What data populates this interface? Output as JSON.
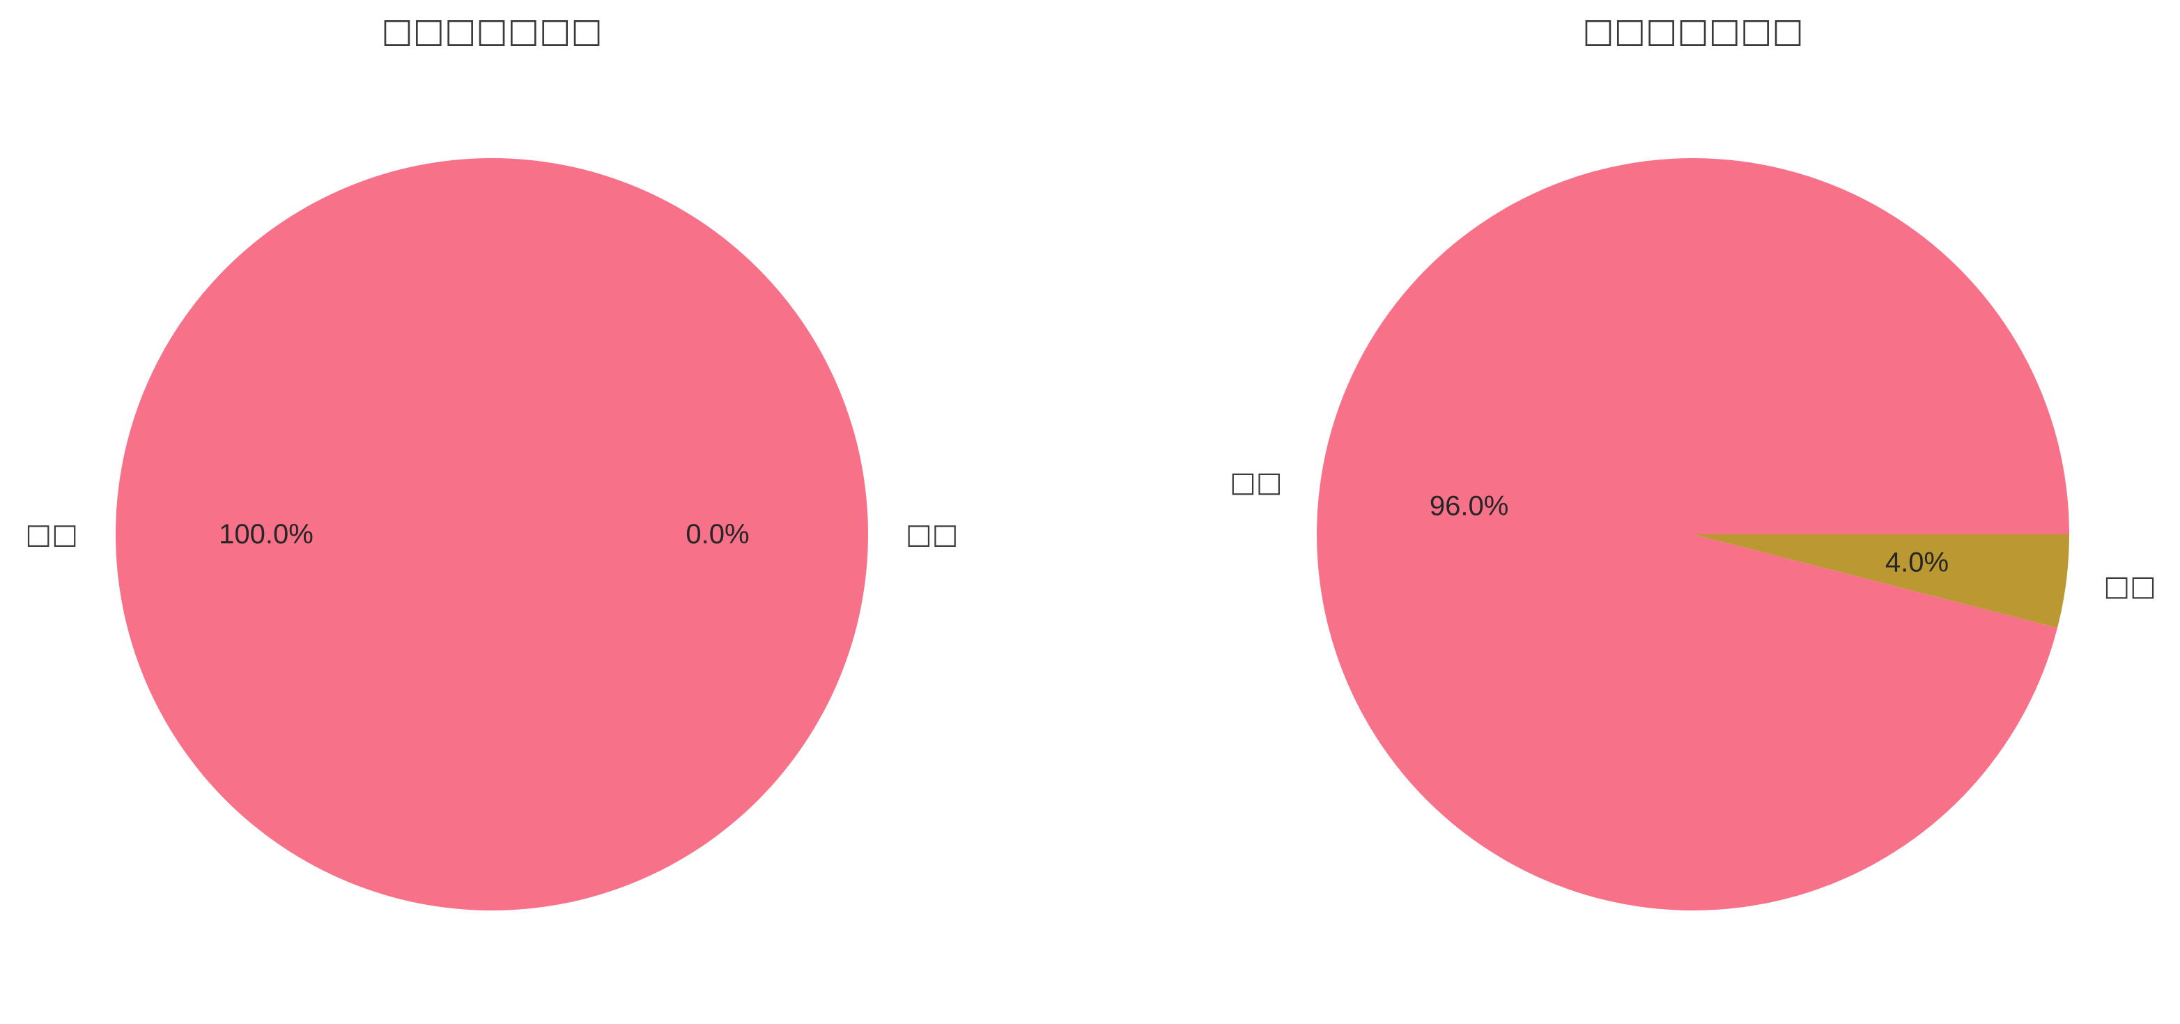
{
  "chart_data": [
    {
      "type": "pie",
      "title": "□□□□□□□",
      "slices": [
        {
          "label": "□□",
          "value": 100.0,
          "pct_label": "100.0%",
          "color": "#f77189"
        },
        {
          "label": "□□",
          "value": 0.0,
          "pct_label": "0.0%",
          "color": "#bb9832"
        }
      ],
      "start_angle_deg": 0,
      "direction": "counterclockwise"
    },
    {
      "type": "pie",
      "title": "□□□□□□□",
      "slices": [
        {
          "label": "□□",
          "value": 96.0,
          "pct_label": "96.0%",
          "color": "#f77189"
        },
        {
          "label": "□□",
          "value": 4.0,
          "pct_label": "4.0%",
          "color": "#bb9832"
        }
      ],
      "start_angle_deg": 0,
      "direction": "counterclockwise"
    }
  ]
}
